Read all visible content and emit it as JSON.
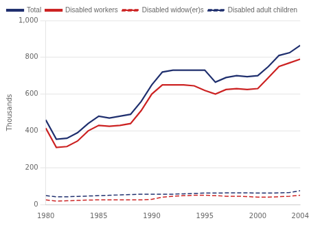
{
  "chart_data": {
    "type": "line",
    "ylabel": "Thousands",
    "x": [
      1980,
      1981,
      1982,
      1983,
      1984,
      1985,
      1986,
      1987,
      1988,
      1989,
      1990,
      1991,
      1992,
      1993,
      1994,
      1995,
      1996,
      1997,
      1998,
      1999,
      2000,
      2001,
      2002,
      2003,
      2004
    ],
    "series": [
      {
        "name": "Total",
        "color": "#1f2f6e",
        "line_style": "solid",
        "values": [
          460,
          355,
          360,
          390,
          440,
          480,
          470,
          480,
          490,
          560,
          650,
          720,
          730,
          730,
          730,
          730,
          665,
          690,
          700,
          695,
          700,
          750,
          810,
          825,
          865
        ]
      },
      {
        "name": "Disabled workers",
        "color": "#cc2222",
        "line_style": "solid",
        "values": [
          415,
          310,
          315,
          345,
          400,
          430,
          425,
          430,
          440,
          510,
          600,
          650,
          650,
          650,
          645,
          620,
          600,
          625,
          630,
          625,
          630,
          690,
          750,
          770,
          790
        ]
      },
      {
        "name": "Disabled widow(er)s",
        "color": "#cc2222",
        "line_style": "dashed",
        "values": [
          25,
          18,
          20,
          22,
          24,
          25,
          25,
          25,
          25,
          25,
          28,
          40,
          45,
          48,
          50,
          50,
          48,
          45,
          45,
          43,
          40,
          40,
          42,
          45,
          50
        ]
      },
      {
        "name": "Disabled adult children",
        "color": "#1f2f6e",
        "line_style": "dashed",
        "values": [
          48,
          42,
          42,
          44,
          46,
          48,
          50,
          52,
          54,
          56,
          56,
          56,
          56,
          58,
          60,
          62,
          62,
          63,
          63,
          63,
          62,
          62,
          63,
          65,
          75
        ]
      }
    ],
    "xlim": [
      1980,
      2004
    ],
    "xticks": [
      1980,
      1985,
      1990,
      1995,
      2000,
      2004
    ],
    "ylim": [
      0,
      1000
    ],
    "yticks": [
      0,
      200,
      400,
      600,
      800,
      {
        "value": 1000,
        "label": "1,000"
      }
    ],
    "grid": true,
    "legend": "upper-left"
  }
}
